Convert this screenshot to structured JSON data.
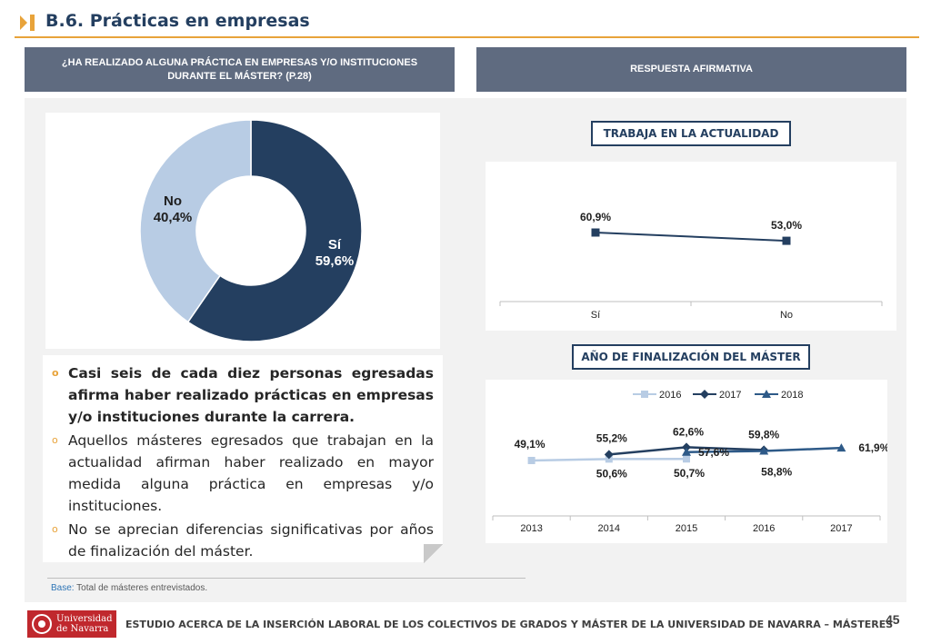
{
  "header": {
    "title": "B.6. Prácticas en empresas"
  },
  "left_header": "¿HA REALIZADO ALGUNA PRÁCTICA EN EMPRESAS Y/O INSTITUCIONES DURANTE EL MÁSTER? (P.28)",
  "right_header": "RESPUESTA AFIRMATIVA",
  "donut": {
    "slices": [
      {
        "label": "Sí",
        "value_text": "59,6%",
        "value": 59.6,
        "color": "#243f60"
      },
      {
        "label": "No",
        "value_text": "40,4%",
        "value": 40.4,
        "color": "#b8cce4"
      }
    ]
  },
  "bullets": [
    {
      "text": "Casi seis de cada diez personas egresadas afirma haber realizado prácticas en empresas y/o instituciones durante la carrera.",
      "bold": true
    },
    {
      "text": "Aquellos másteres egresados que trabajan en la actualidad afirman haber realizado en mayor medida alguna práctica en empresas y/o instituciones.",
      "bold": false
    },
    {
      "text": "No se aprecian diferencias significativas por años de finalización del máster.",
      "bold": false
    }
  ],
  "bullet_symbol": "o",
  "trabaja_title": "TRABAJA EN LA ACTUALIDAD",
  "anio_title": "AÑO DE FINALIZACIÓN DEL MÁSTER",
  "chart_data": [
    {
      "type": "line",
      "title": "TRABAJA EN LA ACTUALIDAD",
      "categories": [
        "Sí",
        "No"
      ],
      "values": [
        60.9,
        53.0
      ],
      "value_labels": [
        "60,9%",
        "53,0%"
      ],
      "color": "#243f60",
      "ylim": [
        0,
        100
      ]
    },
    {
      "type": "line",
      "title": "AÑO DE FINALIZACIÓN DEL MÁSTER",
      "categories": [
        "2013",
        "2014",
        "2015",
        "2016",
        "2017"
      ],
      "ylim": [
        0,
        100
      ],
      "legend_position": "top",
      "series": [
        {
          "name": "2016",
          "color": "#b8cce4",
          "marker": "square",
          "values": [
            49.1,
            50.6,
            50.7,
            null,
            null
          ],
          "labels": [
            "49,1%",
            "50,6%",
            "50,7%",
            null,
            null
          ]
        },
        {
          "name": "2017",
          "color": "#243f60",
          "marker": "diamond",
          "values": [
            null,
            55.2,
            62.6,
            59.8,
            null
          ],
          "labels": [
            null,
            "55,2%",
            "62,6%",
            "59,8%",
            null
          ]
        },
        {
          "name": "2018",
          "color": "#2e5a88",
          "marker": "triangle",
          "values": [
            null,
            null,
            57.6,
            58.8,
            61.9
          ],
          "labels": [
            null,
            null,
            "57,6%",
            "58,8%",
            "61,9%"
          ]
        }
      ]
    }
  ],
  "base": {
    "label": "Base:",
    "text": " Total de másteres entrevistados."
  },
  "footer": {
    "logo_line1": "Universidad",
    "logo_line2": "de Navarra",
    "text": "ESTUDIO ACERCA DE LA INSERCIÓN LABORAL DE LOS COLECTIVOS DE GRADOS Y MÁSTER DE LA UNIVERSIDAD DE NAVARRA – MÁSTERES",
    "page": "45"
  }
}
